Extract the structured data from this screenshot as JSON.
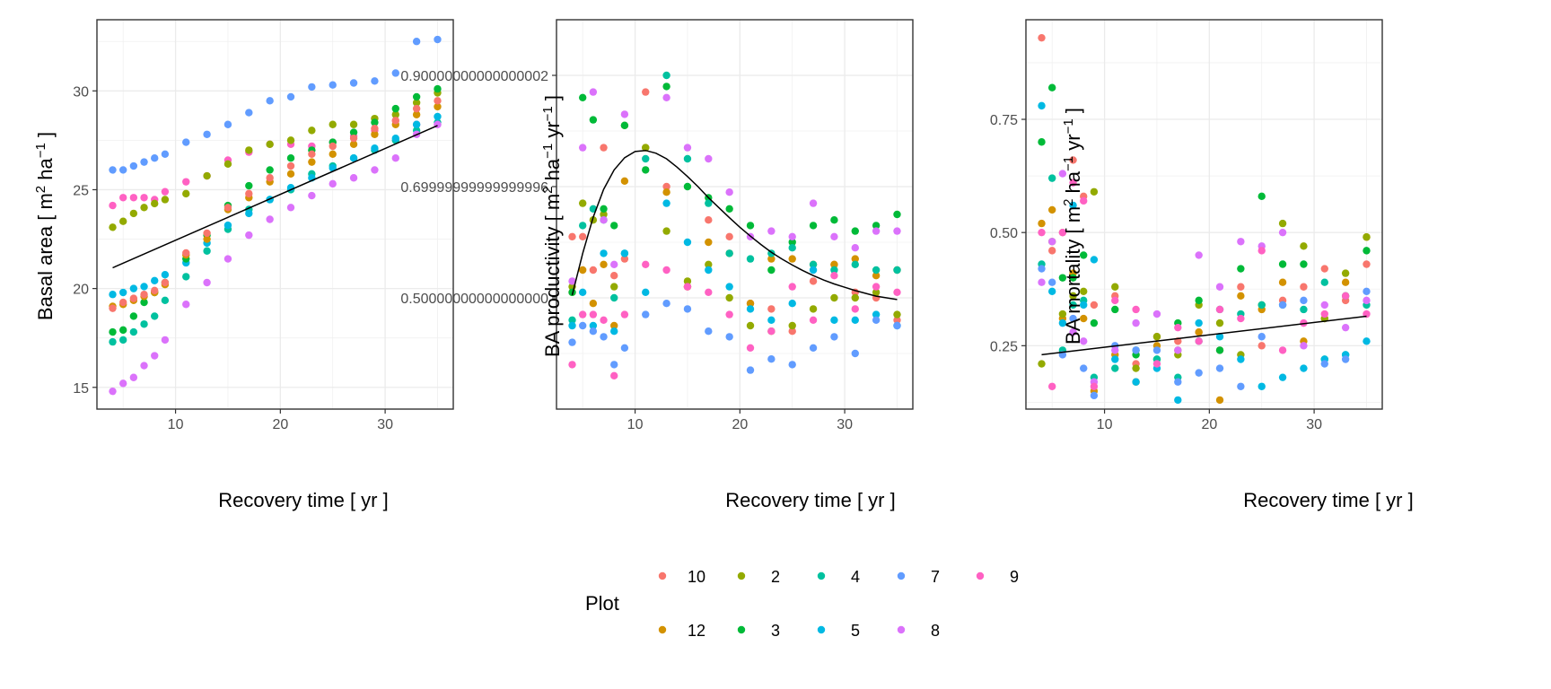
{
  "legend": {
    "title": "Plot",
    "plots": [
      "10",
      "12",
      "2",
      "3",
      "4",
      "5",
      "7",
      "8",
      "9"
    ],
    "colors": {
      "10": "#F8766D",
      "12": "#D39200",
      "2": "#93AA00",
      "3": "#00BA38",
      "4": "#00C19F",
      "5": "#00B9E3",
      "7": "#619CFF",
      "8": "#DB72FB",
      "9": "#FF61C3"
    }
  },
  "chart_data": [
    {
      "type": "scatter",
      "xlabel": "Recovery time [ yr ]",
      "ylabel": "Basal area [ m² ha⁻¹ ]",
      "ylabel_parts": {
        "pre": "Basal area [ m",
        "sup1": "2",
        "mid": " ha",
        "sup2": "−1",
        "post": " ]"
      },
      "xlim": [
        2.5,
        36.5
      ],
      "ylim": [
        13.9,
        33.6
      ],
      "xticks": [
        10,
        20,
        30
      ],
      "yticks": [
        15,
        20,
        25,
        30
      ],
      "x": [
        4,
        5,
        6,
        7,
        8,
        9,
        11,
        13,
        15,
        17,
        19,
        21,
        23,
        25,
        27,
        29,
        31,
        33,
        35
      ],
      "series": [
        {
          "name": "7",
          "values": [
            26.0,
            26.0,
            26.2,
            26.4,
            26.6,
            26.8,
            27.4,
            27.8,
            28.3,
            28.9,
            29.5,
            29.7,
            30.2,
            30.3,
            30.4,
            30.5,
            30.9,
            32.5,
            32.6
          ]
        },
        {
          "name": "9",
          "values": [
            24.2,
            24.6,
            24.6,
            24.6,
            24.5,
            24.9,
            25.4,
            25.7,
            26.5,
            26.9,
            27.3,
            27.3,
            27.2,
            27.4,
            27.7,
            28.0,
            28.5,
            28.3,
            28.3
          ]
        },
        {
          "name": "2",
          "values": [
            23.1,
            23.4,
            23.8,
            24.1,
            24.3,
            24.5,
            24.8,
            25.7,
            26.3,
            27.0,
            27.3,
            27.5,
            28.0,
            28.3,
            28.3,
            28.6,
            28.8,
            29.4,
            29.9
          ]
        },
        {
          "name": "4",
          "values": [
            17.3,
            17.4,
            17.8,
            18.2,
            18.6,
            19.4,
            20.6,
            21.9,
            23.0,
            24.0,
            24.5,
            25.0,
            25.8,
            26.2,
            26.6,
            27.0,
            27.5,
            28.0,
            28.4
          ]
        },
        {
          "name": "5",
          "values": [
            19.7,
            19.8,
            20.0,
            20.1,
            20.4,
            20.7,
            21.3,
            22.3,
            23.2,
            23.8,
            24.5,
            25.1,
            25.6,
            26.1,
            26.6,
            27.1,
            27.6,
            28.3,
            28.7
          ]
        },
        {
          "name": "3",
          "values": [
            17.8,
            17.9,
            18.6,
            19.3,
            19.8,
            20.3,
            21.5,
            22.7,
            24.2,
            25.2,
            26.0,
            26.6,
            27.0,
            27.4,
            27.9,
            28.4,
            29.1,
            29.7,
            30.1
          ]
        },
        {
          "name": "12",
          "values": [
            19.1,
            19.2,
            19.4,
            19.6,
            19.8,
            20.2,
            21.7,
            22.5,
            24.0,
            24.6,
            25.4,
            25.8,
            26.4,
            26.8,
            27.3,
            27.8,
            28.3,
            28.8,
            29.2
          ]
        },
        {
          "name": "10",
          "values": [
            19.0,
            19.3,
            19.5,
            19.7,
            19.9,
            20.3,
            21.8,
            22.8,
            24.1,
            24.8,
            25.6,
            26.2,
            26.8,
            27.2,
            27.6,
            28.1,
            28.5,
            29.1,
            29.5
          ]
        },
        {
          "name": "8",
          "values": [
            14.8,
            15.2,
            15.5,
            16.1,
            16.6,
            17.4,
            19.2,
            20.3,
            21.5,
            22.7,
            23.5,
            24.1,
            24.7,
            25.3,
            25.6,
            26.0,
            26.6,
            27.8,
            28.3
          ]
        }
      ],
      "trend": {
        "x": [
          4,
          35
        ],
        "y": [
          21.05,
          28.25
        ]
      }
    },
    {
      "type": "scatter",
      "xlabel": "Recovery time [ yr ]",
      "ylabel": "BA productivity [ m² ha⁻¹ yr⁻¹ ]",
      "ylabel_parts": {
        "pre": "BA productivity [ m",
        "sup1": "2",
        "mid": " ha",
        "sup2": "−1",
        "mid2": " yr",
        "sup3": "−1",
        "post": " ]"
      },
      "xlim": [
        2.5,
        36.5
      ],
      "ylim": [
        0.3,
        1.0
      ],
      "xticks": [
        10,
        20,
        30
      ],
      "yticks": [
        0.5,
        0.7,
        0.9
      ],
      "x": [
        4,
        5,
        6,
        7,
        8,
        9,
        11,
        13,
        15,
        17,
        19,
        21,
        23,
        25,
        27,
        29,
        31,
        33,
        35
      ],
      "series": [
        {
          "name": "10",
          "values": [
            0.61,
            0.61,
            0.55,
            0.77,
            0.54,
            0.57,
            0.87,
            0.7,
            0.52,
            0.64,
            0.61,
            0.49,
            0.48,
            0.44,
            0.53,
            0.56,
            0.51,
            0.5,
            0.46
          ]
        },
        {
          "name": "12",
          "values": [
            0.51,
            0.55,
            0.49,
            0.56,
            0.45,
            0.71,
            0.77,
            0.69,
            0.52,
            0.6,
            0.58,
            0.49,
            0.57,
            0.57,
            0.56,
            0.56,
            0.57,
            0.54,
            0.55
          ]
        },
        {
          "name": "2",
          "values": [
            0.52,
            0.67,
            0.64,
            0.65,
            0.52,
            0.81,
            0.77,
            0.62,
            0.53,
            0.56,
            0.5,
            0.45,
            0.44,
            0.45,
            0.48,
            0.5,
            0.5,
            0.51,
            0.47
          ]
        },
        {
          "name": "3",
          "values": [
            0.51,
            0.86,
            0.82,
            0.66,
            0.63,
            0.81,
            0.73,
            0.88,
            0.7,
            0.68,
            0.66,
            0.63,
            0.55,
            0.6,
            0.63,
            0.64,
            0.62,
            0.63,
            0.65
          ]
        },
        {
          "name": "4",
          "values": [
            0.46,
            0.63,
            0.66,
            0.64,
            0.5,
            0.58,
            0.75,
            0.9,
            0.75,
            0.67,
            0.58,
            0.57,
            0.58,
            0.59,
            0.56,
            0.55,
            0.56,
            0.55,
            0.55
          ]
        },
        {
          "name": "5",
          "values": [
            0.45,
            0.51,
            0.45,
            0.58,
            0.44,
            0.58,
            0.51,
            0.67,
            0.6,
            0.55,
            0.52,
            0.48,
            0.46,
            0.49,
            0.55,
            0.46,
            0.46,
            0.47,
            0.45
          ]
        },
        {
          "name": "7",
          "values": [
            0.42,
            0.45,
            0.44,
            0.43,
            0.38,
            0.41,
            0.47,
            0.49,
            0.48,
            0.44,
            0.43,
            0.37,
            0.39,
            0.38,
            0.41,
            0.43,
            0.4,
            0.46,
            0.45
          ]
        },
        {
          "name": "8",
          "values": [
            0.53,
            0.77,
            0.87,
            0.64,
            0.56,
            0.83,
            1.05,
            0.86,
            0.77,
            0.75,
            0.69,
            0.61,
            0.62,
            0.61,
            0.67,
            0.61,
            0.59,
            0.62,
            0.62
          ]
        },
        {
          "name": "9",
          "values": [
            0.38,
            0.47,
            0.47,
            0.46,
            0.36,
            0.47,
            0.56,
            0.55,
            0.52,
            0.51,
            0.47,
            0.41,
            0.44,
            0.52,
            0.46,
            0.54,
            0.48,
            0.52,
            0.51
          ]
        }
      ],
      "trend": {
        "x": [
          4,
          5,
          6,
          7,
          8,
          9,
          10,
          11,
          12,
          13,
          14,
          15,
          16,
          17,
          18,
          19,
          20,
          21,
          22,
          23,
          24,
          25,
          26,
          27,
          28,
          29,
          30,
          31,
          32,
          33,
          34,
          35
        ],
        "y": [
          0.505,
          0.58,
          0.645,
          0.695,
          0.73,
          0.752,
          0.763,
          0.765,
          0.76,
          0.75,
          0.735,
          0.718,
          0.7,
          0.68,
          0.662,
          0.644,
          0.627,
          0.611,
          0.596,
          0.582,
          0.57,
          0.559,
          0.549,
          0.54,
          0.532,
          0.525,
          0.519,
          0.513,
          0.508,
          0.503,
          0.5,
          0.497
        ]
      }
    },
    {
      "type": "scatter",
      "xlabel": "Recovery time [ yr ]",
      "ylabel": "BA mortality [ m² ha⁻¹ yr⁻¹ ]",
      "ylabel_parts": {
        "pre": "BA mortality [ m",
        "sup1": "2",
        "mid": " ha",
        "sup2": "−1",
        "mid2": " yr",
        "sup3": "−1",
        "post": " ]"
      },
      "xlim": [
        2.5,
        36.5
      ],
      "ylim": [
        0.11,
        0.97
      ],
      "xticks": [
        10,
        20,
        30
      ],
      "yticks": [
        0.25,
        0.5,
        0.75
      ],
      "x": [
        4,
        5,
        6,
        7,
        8,
        9,
        11,
        13,
        15,
        17,
        19,
        21,
        23,
        25,
        27,
        29,
        31,
        33,
        35
      ],
      "series": [
        {
          "name": "10",
          "values": [
            0.93,
            0.46,
            0.5,
            0.66,
            0.58,
            0.34,
            0.36,
            0.21,
            0.27,
            0.26,
            0.28,
            0.24,
            0.38,
            0.25,
            0.35,
            0.38,
            0.42,
            0.35,
            0.43
          ]
        },
        {
          "name": "12",
          "values": [
            0.52,
            0.55,
            0.31,
            0.41,
            0.31,
            0.15,
            0.23,
            0.17,
            0.25,
            0.24,
            0.28,
            0.13,
            0.36,
            0.33,
            0.39,
            0.26,
            0.31,
            0.39,
            0.49
          ]
        },
        {
          "name": "2",
          "values": [
            0.21,
            0.48,
            0.32,
            0.36,
            0.37,
            0.59,
            0.38,
            0.2,
            0.27,
            0.23,
            0.34,
            0.3,
            0.23,
            0.34,
            0.52,
            0.47,
            0.31,
            0.41,
            0.49
          ]
        },
        {
          "name": "3",
          "values": [
            0.7,
            0.82,
            0.4,
            0.4,
            0.45,
            0.3,
            0.33,
            0.23,
            0.22,
            0.3,
            0.35,
            0.24,
            0.42,
            0.58,
            0.43,
            0.43,
            0.22,
            0.36,
            0.46
          ]
        },
        {
          "name": "4",
          "values": [
            0.43,
            0.62,
            0.24,
            0.34,
            0.35,
            0.18,
            0.2,
            0.24,
            0.22,
            0.18,
            0.26,
            0.33,
            0.32,
            0.34,
            0.34,
            0.33,
            0.39,
            0.23,
            0.34
          ]
        },
        {
          "name": "5",
          "values": [
            0.78,
            0.37,
            0.3,
            0.56,
            0.34,
            0.44,
            0.22,
            0.17,
            0.2,
            0.13,
            0.3,
            0.27,
            0.22,
            0.16,
            0.18,
            0.2,
            0.22,
            0.23,
            0.26
          ]
        },
        {
          "name": "7",
          "values": [
            0.42,
            0.39,
            0.23,
            0.31,
            0.2,
            0.14,
            0.25,
            0.24,
            0.24,
            0.17,
            0.19,
            0.2,
            0.16,
            0.27,
            0.34,
            0.35,
            0.21,
            0.22,
            0.37
          ]
        },
        {
          "name": "8",
          "values": [
            0.39,
            0.48,
            0.63,
            0.28,
            0.26,
            0.17,
            0.24,
            0.3,
            0.32,
            0.24,
            0.45,
            0.38,
            0.48,
            0.47,
            0.5,
            0.25,
            0.34,
            0.29,
            0.35
          ]
        },
        {
          "name": "9",
          "values": [
            0.5,
            0.16,
            0.5,
            0.61,
            0.57,
            0.16,
            0.35,
            0.33,
            0.21,
            0.29,
            0.26,
            0.33,
            0.31,
            0.46,
            0.24,
            0.3,
            0.32,
            0.36,
            0.32
          ]
        }
      ],
      "trend": {
        "x": [
          4,
          35
        ],
        "y": [
          0.23,
          0.315
        ]
      }
    }
  ]
}
